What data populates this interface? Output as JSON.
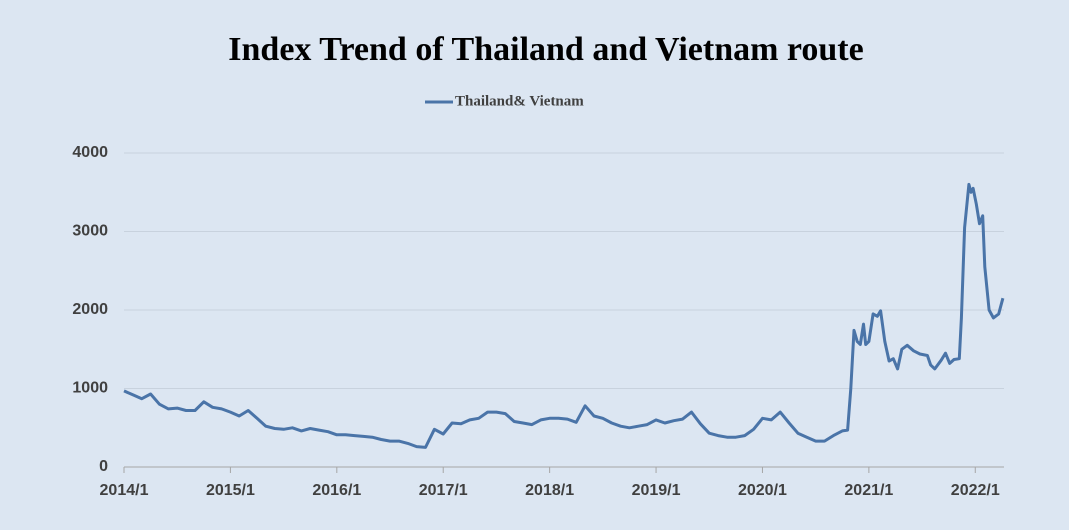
{
  "chart_data": {
    "type": "line",
    "title": "Index Trend of Thailand and Vietnam  route",
    "x": [
      2014,
      2014.083,
      2014.167,
      2014.25,
      2014.333,
      2014.417,
      2014.5,
      2014.583,
      2014.667,
      2014.75,
      2014.833,
      2014.917,
      2015,
      2015.083,
      2015.167,
      2015.25,
      2015.333,
      2015.417,
      2015.5,
      2015.583,
      2015.667,
      2015.75,
      2015.833,
      2015.917,
      2016,
      2016.083,
      2016.167,
      2016.25,
      2016.333,
      2016.417,
      2016.5,
      2016.583,
      2016.667,
      2016.75,
      2016.833,
      2016.917,
      2017,
      2017.083,
      2017.167,
      2017.25,
      2017.333,
      2017.417,
      2017.5,
      2017.583,
      2017.667,
      2017.75,
      2017.833,
      2017.917,
      2018,
      2018.083,
      2018.167,
      2018.25,
      2018.333,
      2018.417,
      2018.5,
      2018.583,
      2018.667,
      2018.75,
      2018.833,
      2018.917,
      2019,
      2019.083,
      2019.167,
      2019.25,
      2019.333,
      2019.417,
      2019.5,
      2019.583,
      2019.667,
      2019.75,
      2019.833,
      2019.917,
      2020,
      2020.083,
      2020.167,
      2020.25,
      2020.333,
      2020.417,
      2020.5,
      2020.583,
      2020.667,
      2020.75,
      2020.8,
      2020.83,
      2020.86,
      2020.89,
      2020.92,
      2020.95,
      2020.97,
      2021,
      2021.04,
      2021.08,
      2021.11,
      2021.15,
      2021.19,
      2021.23,
      2021.27,
      2021.31,
      2021.36,
      2021.42,
      2021.48,
      2021.55,
      2021.58,
      2021.62,
      2021.68,
      2021.72,
      2021.76,
      2021.8,
      2021.85,
      2021.87,
      2021.9,
      2021.94,
      2021.96,
      2021.98,
      2022.01,
      2022.04,
      2022.07,
      2022.09,
      2022.13,
      2022.17,
      2022.22,
      2022.26
    ],
    "series": [
      {
        "name": "Thailand& Vietnam",
        "color": "#4a74a8",
        "values": [
          970,
          920,
          870,
          930,
          800,
          740,
          750,
          720,
          720,
          830,
          760,
          740,
          700,
          650,
          720,
          620,
          520,
          490,
          480,
          500,
          460,
          490,
          470,
          450,
          410,
          410,
          400,
          390,
          380,
          350,
          330,
          330,
          300,
          260,
          250,
          480,
          420,
          560,
          550,
          600,
          620,
          700,
          700,
          680,
          580,
          560,
          540,
          600,
          620,
          620,
          610,
          570,
          780,
          650,
          620,
          560,
          520,
          500,
          520,
          540,
          600,
          560,
          590,
          610,
          700,
          550,
          430,
          400,
          380,
          380,
          400,
          480,
          620,
          600,
          700,
          560,
          430,
          380,
          330,
          330,
          400,
          460,
          470,
          1000,
          1740,
          1600,
          1560,
          1820,
          1560,
          1600,
          1950,
          1920,
          1990,
          1600,
          1350,
          1380,
          1250,
          1500,
          1550,
          1480,
          1440,
          1420,
          1300,
          1250,
          1360,
          1450,
          1320,
          1370,
          1380,
          1900,
          3050,
          3600,
          3500,
          3550,
          3350,
          3100,
          3200,
          2550,
          2000,
          1900,
          1950,
          2150
        ]
      }
    ],
    "xlim": [
      2014,
      2022.27
    ],
    "xticks": [
      {
        "value": 2014,
        "label": "2014/1"
      },
      {
        "value": 2015,
        "label": "2015/1"
      },
      {
        "value": 2016,
        "label": "2016/1"
      },
      {
        "value": 2017,
        "label": "2017/1"
      },
      {
        "value": 2018,
        "label": "2018/1"
      },
      {
        "value": 2019,
        "label": "2019/1"
      },
      {
        "value": 2020,
        "label": "2020/1"
      },
      {
        "value": 2021,
        "label": "2021/1"
      },
      {
        "value": 2022,
        "label": "2022/1"
      }
    ],
    "ylim": [
      0,
      4000
    ],
    "yticks": [
      0,
      1000,
      2000,
      3000,
      4000
    ],
    "grid": true,
    "legend": "top"
  }
}
